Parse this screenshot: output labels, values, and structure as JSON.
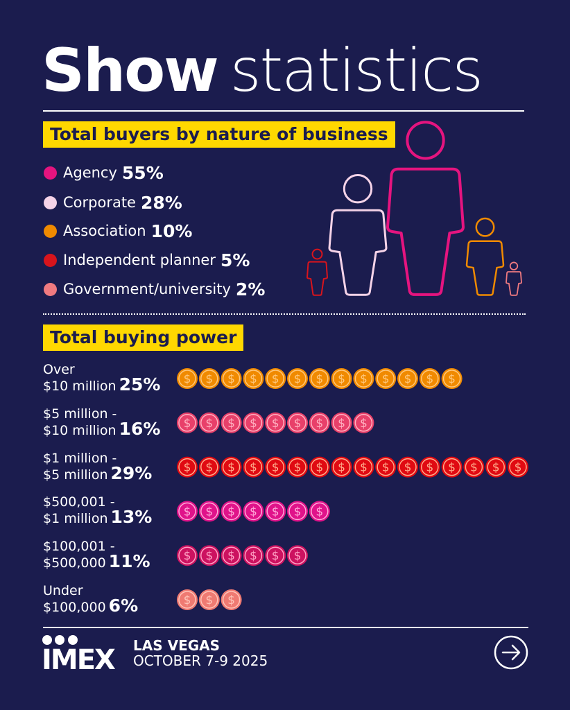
{
  "header": {
    "title_bold": "Show",
    "title_light": "statistics"
  },
  "section1": {
    "heading": "Total buyers by nature of business",
    "items": [
      {
        "label": "Agency",
        "pct": "55%",
        "color": "#e5147f"
      },
      {
        "label": "Corporate",
        "pct": "28%",
        "color": "#f5d3e8"
      },
      {
        "label": "Association",
        "pct": "10%",
        "color": "#f08a00"
      },
      {
        "label": "Independent planner",
        "pct": "5%",
        "color": "#d8141c"
      },
      {
        "label": "Government/university",
        "pct": "2%",
        "color": "#f07a80"
      }
    ]
  },
  "section2": {
    "heading": "Total buying power",
    "rows": [
      {
        "line1": "Over",
        "line2": "$10 million",
        "pct": "25%",
        "color": "#f08a00",
        "ring": "#ffc77a"
      },
      {
        "line1": "$5 million -",
        "line2": "$10 million",
        "pct": "16%",
        "color": "#e8406a",
        "ring": "#ffb0c0"
      },
      {
        "line1": "$1 million -",
        "line2": "$5 million",
        "pct": "29%",
        "color": "#e00a12",
        "ring": "#ffab8a"
      },
      {
        "line1": "$500,001 -",
        "line2": "$1 million",
        "pct": "13%",
        "color": "#e0138a",
        "ring": "#ffa8d8"
      },
      {
        "line1": "$100,001 -",
        "line2": "$500,000",
        "pct": "11%",
        "color": "#cc1260",
        "ring": "#ffa0c4"
      },
      {
        "line1": "Under",
        "line2": "$100,000",
        "pct": "6%",
        "color": "#ef7a72",
        "ring": "#ffc3b8"
      }
    ]
  },
  "footer": {
    "logo": "IMEX",
    "city": "LAS VEGAS",
    "dates": "OCTOBER 7-9 2025",
    "next_icon": "arrow-right-circle-icon"
  },
  "chart_data": [
    {
      "type": "pictograph",
      "title": "Total buyers by nature of business",
      "categories": [
        "Agency",
        "Corporate",
        "Association",
        "Independent planner",
        "Government/university"
      ],
      "values": [
        55,
        28,
        10,
        5,
        2
      ],
      "unit": "%",
      "icon": "person-outline-icon",
      "icon_order": [
        "Independent planner",
        "Corporate",
        "Agency",
        "Association",
        "Government/university"
      ]
    },
    {
      "type": "pictograph",
      "title": "Total buying power",
      "categories": [
        "Over $10 million",
        "$5 million - $10 million",
        "$1 million - $5 million",
        "$500,001 - $1 million",
        "$100,001 - $500,000",
        "Under $100,000"
      ],
      "values": [
        25,
        16,
        29,
        13,
        11,
        6
      ],
      "coins": [
        13,
        9,
        16,
        7,
        6,
        3
      ],
      "unit": "%",
      "icon": "dollar-coin-icon"
    }
  ]
}
